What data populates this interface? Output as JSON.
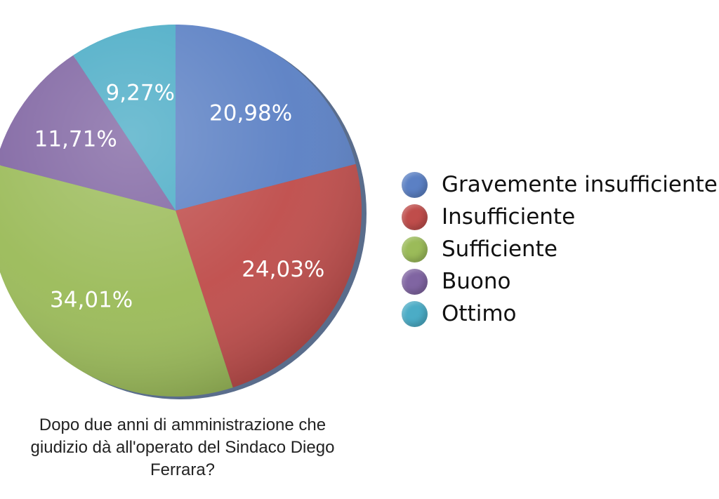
{
  "chart_data": {
    "type": "pie",
    "caption_lines": [
      "Dopo due anni di amministrazione che",
      "giudizio dà all'operato del Sindaco Diego",
      "Ferrara?"
    ],
    "slices": [
      {
        "label": "Gravemente insufficiente",
        "value": 20.98,
        "display": "20,98%",
        "color": "#5b80c4"
      },
      {
        "label": "Insufficiente",
        "value": 24.03,
        "display": "24,03%",
        "color": "#bf4d4b"
      },
      {
        "label": "Sufficiente",
        "value": 34.01,
        "display": "34,01%",
        "color": "#9bbb59"
      },
      {
        "label": "Buono",
        "value": 11.71,
        "display": "11,71%",
        "color": "#8065a2"
      },
      {
        "label": "Ottimo",
        "value": 9.27,
        "display": "9,27%",
        "color": "#4bacc6"
      }
    ],
    "legend_position": "right"
  }
}
